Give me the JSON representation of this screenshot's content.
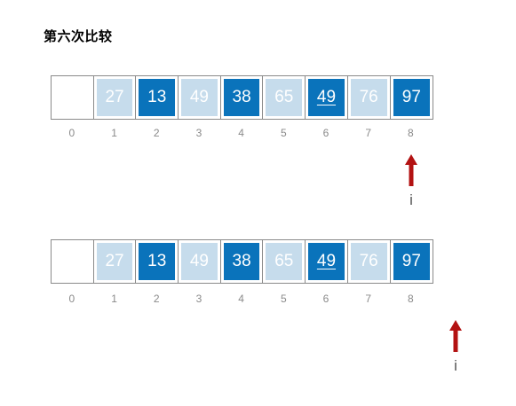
{
  "title": "第六次比较",
  "colors": {
    "light": "#c6dcec",
    "dark": "#0a73bb",
    "border": "#8a8a8a",
    "arrow": "#b31212"
  },
  "rows": [
    {
      "cells": [
        {
          "value": "",
          "style": "empty"
        },
        {
          "value": "27",
          "style": "light"
        },
        {
          "value": "13",
          "style": "dark"
        },
        {
          "value": "49",
          "style": "light"
        },
        {
          "value": "38",
          "style": "dark"
        },
        {
          "value": "65",
          "style": "light"
        },
        {
          "value": "49",
          "style": "dark",
          "underline": true
        },
        {
          "value": "76",
          "style": "light"
        },
        {
          "value": "97",
          "style": "dark"
        }
      ],
      "indices": [
        "0",
        "1",
        "2",
        "3",
        "4",
        "5",
        "6",
        "7",
        "8"
      ],
      "pointer": {
        "label": "i",
        "icon": "up-arrow-icon"
      }
    },
    {
      "cells": [
        {
          "value": "",
          "style": "empty"
        },
        {
          "value": "27",
          "style": "light"
        },
        {
          "value": "13",
          "style": "dark"
        },
        {
          "value": "49",
          "style": "light"
        },
        {
          "value": "38",
          "style": "dark"
        },
        {
          "value": "65",
          "style": "light"
        },
        {
          "value": "49",
          "style": "dark",
          "underline": true
        },
        {
          "value": "76",
          "style": "light"
        },
        {
          "value": "97",
          "style": "dark"
        }
      ],
      "indices": [
        "0",
        "1",
        "2",
        "3",
        "4",
        "5",
        "6",
        "7",
        "8"
      ],
      "pointer": {
        "label": "i",
        "icon": "up-arrow-icon"
      }
    }
  ]
}
